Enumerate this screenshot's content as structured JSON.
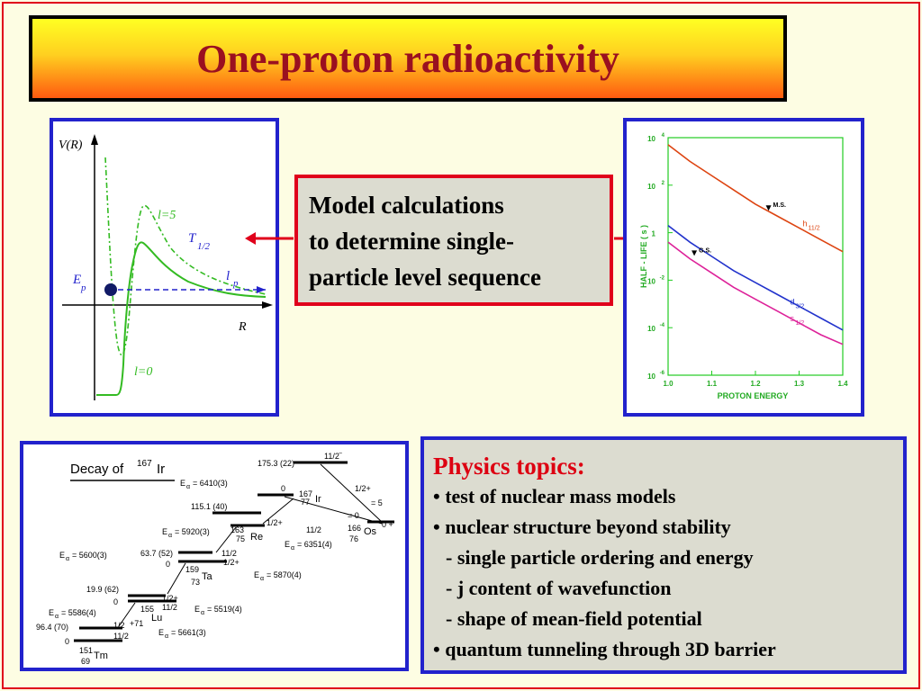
{
  "title": "One-proton radioactivity",
  "potential_diagram": {
    "y_axis_label": "V(R)",
    "x_axis_label": "R",
    "curve_l5_label": "l=5",
    "curve_l0_label": "l=0",
    "t_half_label": "T",
    "t_half_sub": "1/2",
    "ep_label": "E",
    "ep_sub": "p",
    "lp_label": "l",
    "lp_sub": "p"
  },
  "model_box": {
    "lines": [
      "Model calculations",
      "to determine single-",
      "particle level sequence"
    ]
  },
  "halflife_chart": {
    "chart_data": {
      "type": "line",
      "xlabel": "PROTON ENERGY",
      "ylabel": "HALF - LIFE ( s )",
      "xlim": [
        1.0,
        1.4
      ],
      "ylim_log10": [
        -6,
        4
      ],
      "x_ticks": [
        "1.0",
        "1.1",
        "1.2",
        "1.3",
        "1.4"
      ],
      "y_ticks": [
        {
          "base": "10",
          "exp": "4",
          "log": 4
        },
        {
          "base": "10",
          "exp": "2",
          "log": 2
        },
        {
          "base": "1",
          "exp": "",
          "log": 0
        },
        {
          "base": "10",
          "exp": "-2",
          "log": -2
        },
        {
          "base": "10",
          "exp": "-4",
          "log": -4
        },
        {
          "base": "10",
          "exp": "-6",
          "log": -6
        }
      ],
      "series": [
        {
          "name": "h",
          "sub": "11/2",
          "color": "#dd4411",
          "x": [
            1.0,
            1.05,
            1.1,
            1.15,
            1.2,
            1.25,
            1.3,
            1.35,
            1.4
          ],
          "log10_y": [
            3.7,
            3.0,
            2.4,
            1.8,
            1.2,
            0.7,
            0.2,
            -0.3,
            -0.8
          ]
        },
        {
          "name": "d",
          "sub": "3/2",
          "color": "#2233cc",
          "x": [
            1.0,
            1.05,
            1.1,
            1.15,
            1.2,
            1.25,
            1.3,
            1.35,
            1.4
          ],
          "log10_y": [
            0.3,
            -0.4,
            -1.0,
            -1.6,
            -2.1,
            -2.6,
            -3.1,
            -3.6,
            -4.1
          ]
        },
        {
          "name": "s",
          "sub": "1/2",
          "color": "#dd2299",
          "x": [
            1.0,
            1.05,
            1.1,
            1.15,
            1.2,
            1.25,
            1.3,
            1.35,
            1.4
          ],
          "log10_y": [
            -0.4,
            -1.1,
            -1.7,
            -2.3,
            -2.8,
            -3.3,
            -3.8,
            -4.3,
            -4.7
          ]
        }
      ],
      "markers": [
        {
          "label": "M.S.",
          "x": 1.23,
          "log10_y": 1.0
        },
        {
          "label": "G.S.",
          "x": 1.06,
          "log10_y": -0.9
        }
      ]
    }
  },
  "decay_scheme": {
    "title": "Decay of",
    "title_mass": "167",
    "title_element": "Ir",
    "labels": {
      "ir_top_energy": "175.3 (22)",
      "ir_top_spin": "11/2",
      "ir_top_exp": "−",
      "ir_ea1": "= 6410(3)",
      "ir_gs_energy": "0",
      "ir_spin_a": "1/2+",
      "ir_mass": "167",
      "ir_z": "77",
      "ir_el": "Ir",
      "ir_eq5": "= 5",
      "ir_eq0": "= 0",
      "os_mass": "166",
      "os_z": "76",
      "os_el": "Os",
      "os_spin": "0 +",
      "re_top_energy": "115.1 (40)",
      "re_ea": "= 5920(3)",
      "re_mass": "163",
      "re_z": "75",
      "re_el": "Re",
      "re_spin_a": "1/2+",
      "re_spin_b": "11/2",
      "re_ea2": "= 6351(4)",
      "ta_top_energy": "63.7 (52)",
      "ta_ea": "= 5600(3)",
      "ta_gs": "0",
      "ta_mass": "159",
      "ta_z": "73",
      "ta_el": "Ta",
      "ta_spin_a": "11/2",
      "ta_spin_b": "1/2+",
      "ta_ea2": "= 5870(4)",
      "lu_top_energy": "19.9 (62)",
      "lu_gs": "0",
      "lu_mass": "155",
      "lu_el": "Lu",
      "lu_spin_a": "1/2+",
      "lu_spin_b": "11/2",
      "lu_ea2": "= 5519(4)",
      "lu_ea": "= 5586(4)",
      "tm_energy": "96.4 (70)",
      "tm_spin_a": "1/2",
      "tm_71": "+71",
      "tm_gs": "0",
      "tm_spin_b": "11/2",
      "tm_ea2": "= 5661(3)",
      "tm_mass": "151",
      "tm_z": "69",
      "tm_el": "Tm",
      "e_alpha": "E",
      "alpha": "α"
    }
  },
  "topics": {
    "heading": "Physics topics:",
    "items": [
      "• test of nuclear mass models",
      "• nuclear structure beyond stability",
      "- single particle ordering and energy",
      "- j content of wavefunction",
      "- shape of mean-field potential",
      "• quantum tunneling through 3D barrier"
    ]
  },
  "colors": {
    "accent_red": "#e0001b",
    "panel_blue": "#2222cc",
    "green_curve": "#33bb22",
    "title_text": "#9a1020"
  }
}
